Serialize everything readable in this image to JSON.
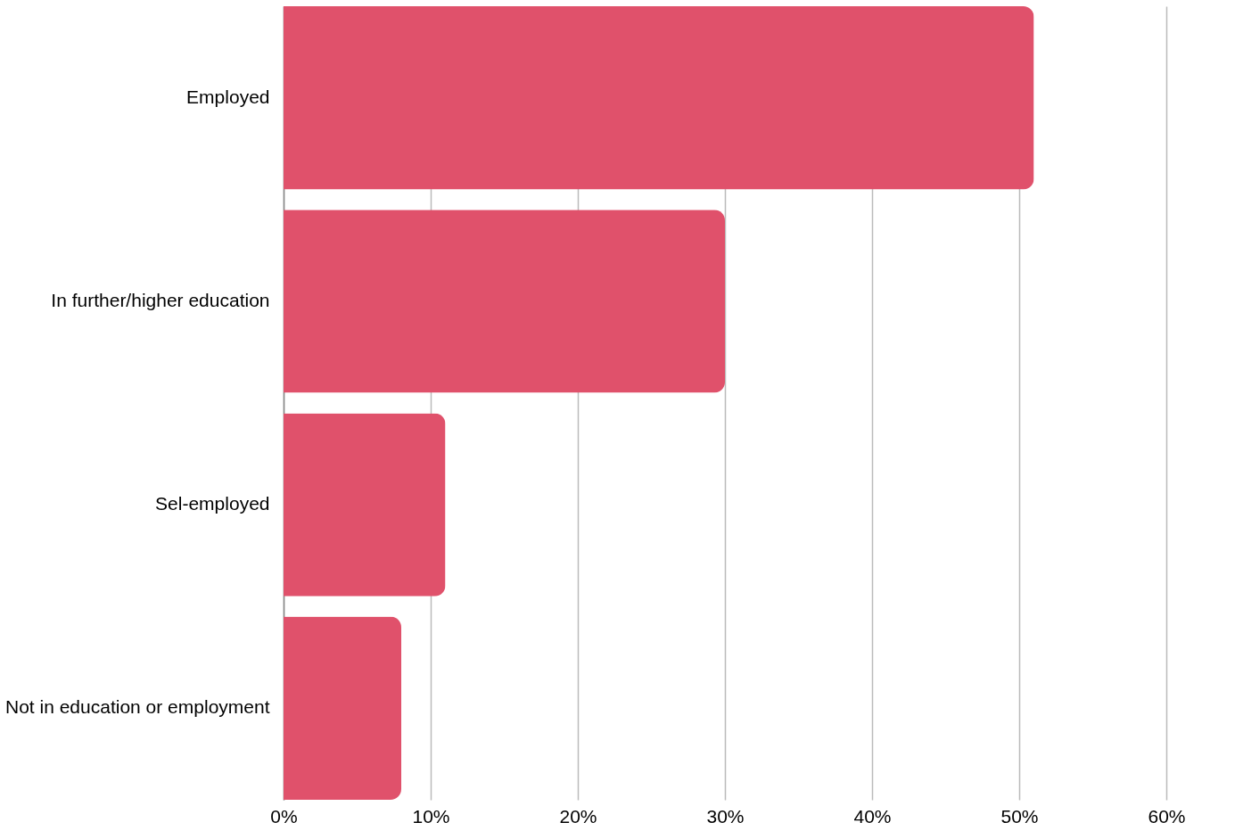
{
  "chart_data": {
    "type": "bar",
    "orientation": "horizontal",
    "categories": [
      "Employed",
      "In further/higher education",
      "Sel-employed",
      "Not in education or employment"
    ],
    "values": [
      51,
      30,
      11,
      8
    ],
    "color": "#e0516b",
    "xlim": [
      0,
      60
    ],
    "xticks": [
      {
        "value": 0,
        "label": "0%"
      },
      {
        "value": 10,
        "label": "10%"
      },
      {
        "value": 20,
        "label": "20%"
      },
      {
        "value": 30,
        "label": "30%"
      },
      {
        "value": 40,
        "label": "40%"
      },
      {
        "value": 50,
        "label": "50%"
      },
      {
        "value": 60,
        "label": "60%"
      }
    ],
    "grid": "x"
  }
}
